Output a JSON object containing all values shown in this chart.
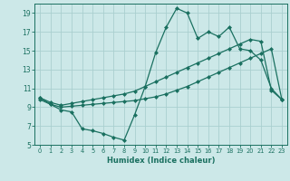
{
  "xlabel": "Humidex (Indice chaleur)",
  "bg_color": "#cce8e8",
  "grid_color": "#aacfcf",
  "line_color": "#1a7060",
  "xlim": [
    -0.5,
    23.5
  ],
  "ylim": [
    5,
    20
  ],
  "yticks": [
    5,
    7,
    9,
    11,
    13,
    15,
    17,
    19
  ],
  "xticks": [
    0,
    1,
    2,
    3,
    4,
    5,
    6,
    7,
    8,
    9,
    10,
    11,
    12,
    13,
    14,
    15,
    16,
    17,
    18,
    19,
    20,
    21,
    22,
    23
  ],
  "series1_x": [
    0,
    1,
    2,
    3,
    4,
    5,
    6,
    7,
    8,
    9,
    10,
    11,
    12,
    13,
    14,
    15,
    16,
    17,
    18,
    19,
    20,
    21,
    22,
    23
  ],
  "series1_y": [
    10.0,
    9.3,
    8.7,
    8.5,
    6.7,
    6.5,
    6.2,
    5.8,
    5.5,
    8.2,
    11.2,
    14.8,
    17.5,
    19.5,
    19.0,
    16.3,
    17.0,
    16.5,
    17.5,
    15.2,
    15.0,
    14.0,
    11.0,
    9.8
  ],
  "series2_x": [
    0,
    1,
    2,
    3,
    4,
    5,
    6,
    7,
    8,
    9,
    10,
    11,
    12,
    13,
    14,
    15,
    16,
    17,
    18,
    19,
    20,
    21,
    22,
    23
  ],
  "series2_y": [
    9.8,
    9.3,
    9.0,
    9.1,
    9.2,
    9.3,
    9.4,
    9.5,
    9.6,
    9.7,
    9.9,
    10.1,
    10.4,
    10.8,
    11.2,
    11.7,
    12.2,
    12.7,
    13.2,
    13.7,
    14.2,
    14.7,
    15.2,
    9.8
  ],
  "series3_x": [
    0,
    1,
    2,
    3,
    4,
    5,
    6,
    7,
    8,
    9,
    10,
    11,
    12,
    13,
    14,
    15,
    16,
    17,
    18,
    19,
    20,
    21,
    22,
    23
  ],
  "series3_y": [
    10.0,
    9.5,
    9.2,
    9.4,
    9.6,
    9.8,
    10.0,
    10.2,
    10.4,
    10.7,
    11.2,
    11.7,
    12.2,
    12.7,
    13.2,
    13.7,
    14.2,
    14.7,
    15.2,
    15.7,
    16.2,
    16.0,
    10.8,
    9.8
  ]
}
